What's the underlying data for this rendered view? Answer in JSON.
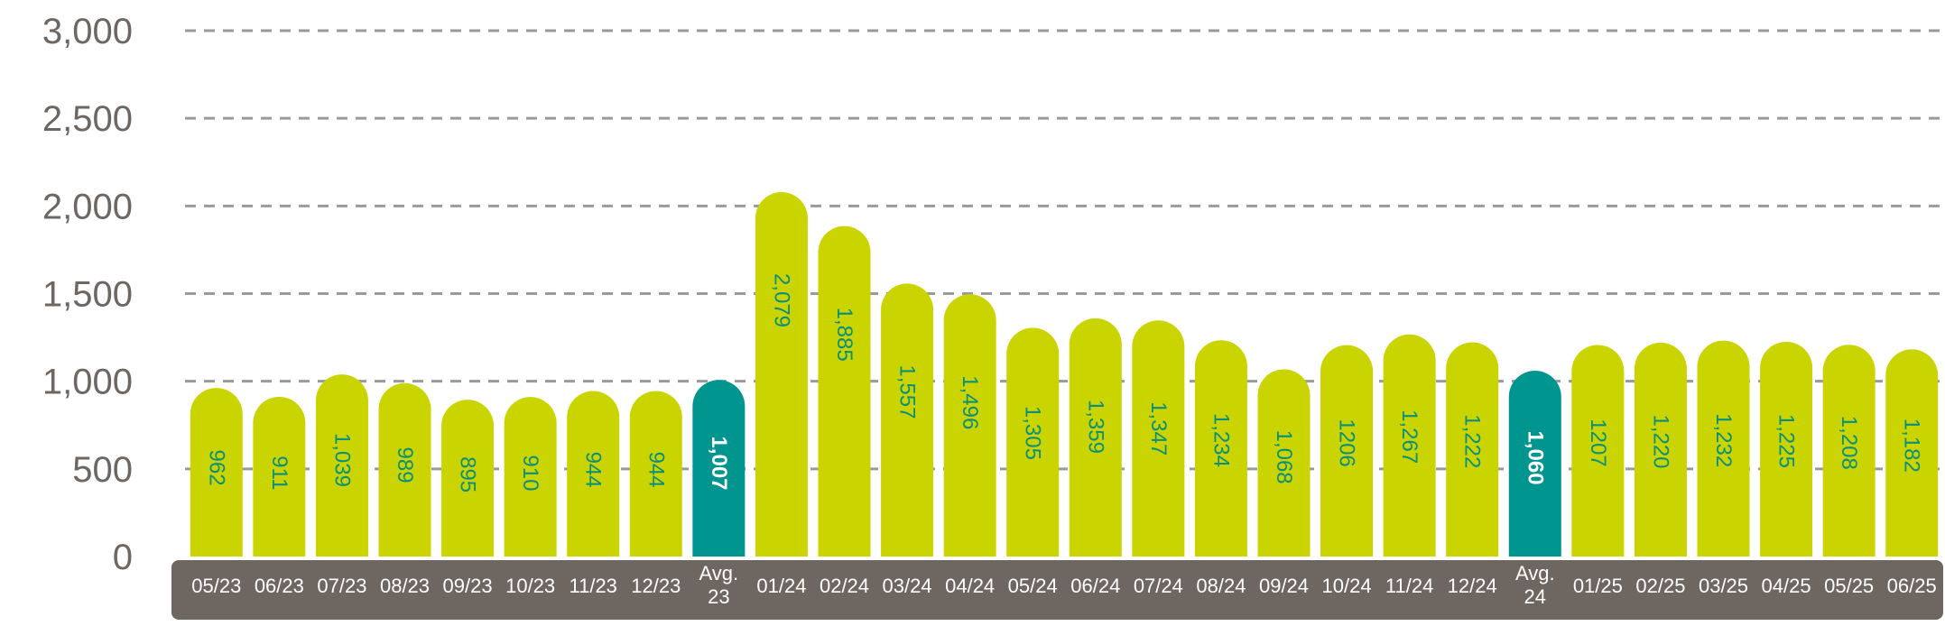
{
  "chart_data": {
    "type": "bar",
    "title": "",
    "xlabel": "",
    "ylabel": "",
    "ylim": [
      0,
      3000
    ],
    "yticks": [
      0,
      500,
      1000,
      1500,
      2000,
      2500,
      3000
    ],
    "ytick_labels": [
      "0",
      "500",
      "1,000",
      "1,500",
      "2,000",
      "2,500",
      "3,000"
    ],
    "grid": true,
    "categories": [
      "05/23",
      "06/23",
      "07/23",
      "08/23",
      "09/23",
      "10/23",
      "11/23",
      "12/23",
      "Avg. 23",
      "01/24",
      "02/24",
      "03/24",
      "04/24",
      "05/24",
      "06/24",
      "07/24",
      "08/24",
      "09/24",
      "10/24",
      "11/24",
      "12/24",
      "Avg. 24",
      "01/25",
      "02/25",
      "03/25",
      "04/25",
      "05/25",
      "06/25"
    ],
    "values": [
      962,
      911,
      1039,
      989,
      895,
      910,
      944,
      944,
      1007,
      2079,
      1885,
      1557,
      1496,
      1305,
      1359,
      1347,
      1234,
      1068,
      1206,
      1267,
      1222,
      1060,
      1207,
      1220,
      1232,
      1225,
      1208,
      1182
    ],
    "value_labels": [
      "962",
      "911",
      "1,039",
      "989",
      "895",
      "910",
      "944",
      "944",
      "1,007",
      "2,079",
      "1,885",
      "1,557",
      "1,496",
      "1,305",
      "1,359",
      "1,347",
      "1,234",
      "1,068",
      "1206",
      "1,267",
      "1,222",
      "1,060",
      "1207",
      "1,220",
      "1,232",
      "1,225",
      "1,208",
      "1,182"
    ],
    "highlighted": [
      false,
      false,
      false,
      false,
      false,
      false,
      false,
      false,
      true,
      false,
      false,
      false,
      false,
      false,
      false,
      false,
      false,
      false,
      false,
      false,
      false,
      true,
      false,
      false,
      false,
      false,
      false,
      false
    ],
    "colors": {
      "bar": "#c9d400",
      "highlight_bar": "#00958f",
      "value_label": "#0a8f7a",
      "highlight_label": "#ffffff",
      "axis_band": "#6e6661",
      "grid": "#9a9a9a",
      "ytick": "#6e6661"
    }
  }
}
